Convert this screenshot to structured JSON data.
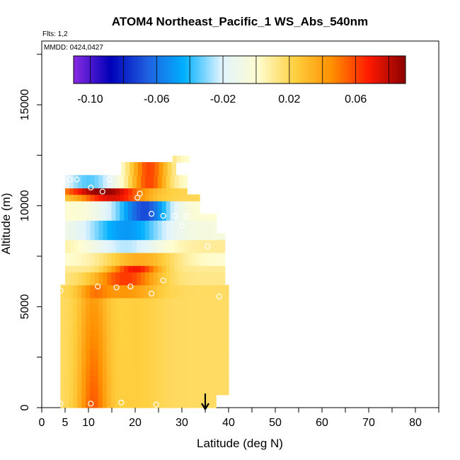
{
  "chart_data": {
    "type": "heatmap",
    "title": "ATOM4 Northeast_Pacific_1 WS_Abs_540nm",
    "flights_note": "Flts: 1,2",
    "dates_note": "MMDD: 0424,0427",
    "xlabel": "Latitude (deg N)",
    "ylabel": "Altitude (m)",
    "xlim": [
      0,
      85
    ],
    "ylim": [
      0,
      17500
    ],
    "x_ticks": [
      0,
      5,
      10,
      20,
      30,
      40,
      50,
      60,
      70,
      80
    ],
    "y_ticks": [
      0,
      5000,
      10000,
      15000
    ],
    "colorbar": {
      "range": [
        -0.11,
        0.09
      ],
      "ticks": [
        "-0.10",
        "-0.06",
        "-0.02",
        "0.02",
        "0.06"
      ],
      "tick_values": [
        -0.1,
        -0.06,
        -0.02,
        0.02,
        0.06
      ],
      "placement": "top"
    },
    "colors": [
      "#8a2be2",
      "#0000b8",
      "#1f5fe0",
      "#00b0ff",
      "#dff3ff",
      "#fffdd0",
      "#ffd040",
      "#ff9000",
      "#ff1a00",
      "#8b0000"
    ],
    "arrow_latitude": 35,
    "grid": false
  }
}
